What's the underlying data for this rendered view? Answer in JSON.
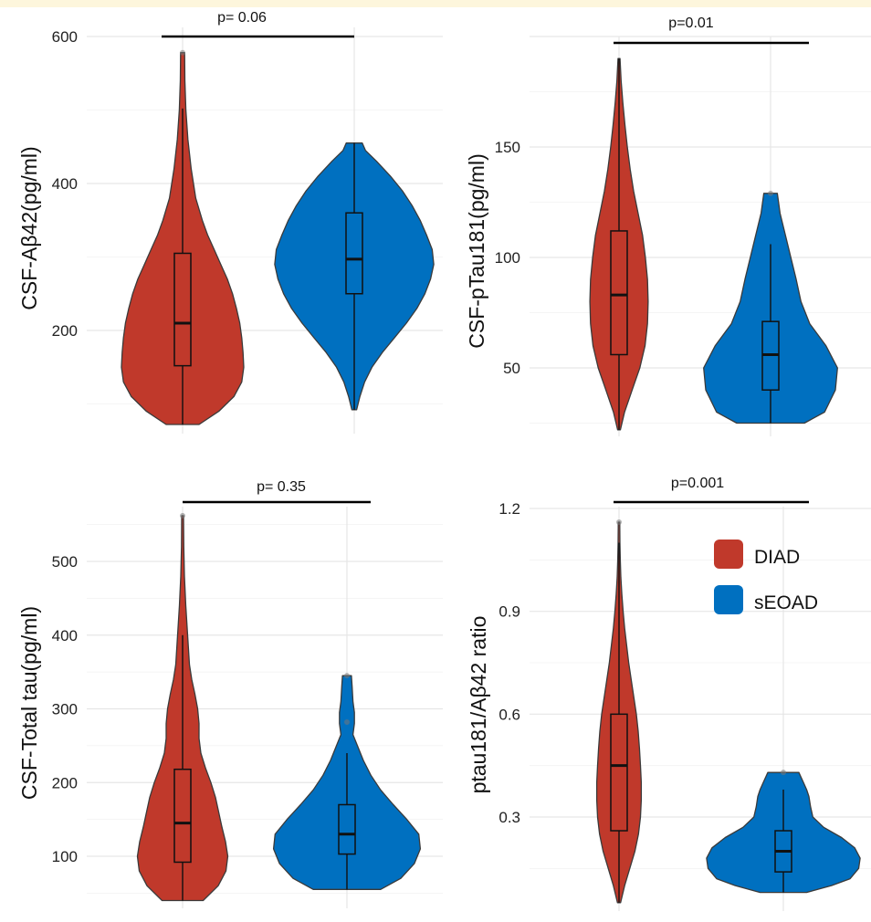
{
  "legend": [
    {
      "label": "DIAD",
      "color": "#c0392b"
    },
    {
      "label": "sEOAD",
      "color": "#0070c0"
    }
  ],
  "chart_data": [
    {
      "type": "violin",
      "ylabel": "CSF-Aβ42(pg/ml)",
      "ylim": [
        60,
        600
      ],
      "yticks": [
        200,
        400,
        600
      ],
      "pvalue": "p= 0.06",
      "series": [
        {
          "name": "DIAD",
          "color": "#c0392b",
          "min": 72,
          "max": 578,
          "q1": 152,
          "median": 210,
          "q3": 305,
          "whisker_low": 72,
          "whisker_high": 502,
          "outliers": [
            578
          ],
          "density": [
            [
              72,
              0.25
            ],
            [
              90,
              0.55
            ],
            [
              110,
              0.78
            ],
            [
              130,
              0.9
            ],
            [
              150,
              0.93
            ],
            [
              170,
              0.92
            ],
            [
              190,
              0.9
            ],
            [
              210,
              0.87
            ],
            [
              230,
              0.82
            ],
            [
              250,
              0.76
            ],
            [
              270,
              0.68
            ],
            [
              290,
              0.58
            ],
            [
              310,
              0.48
            ],
            [
              330,
              0.38
            ],
            [
              350,
              0.3
            ],
            [
              380,
              0.2
            ],
            [
              420,
              0.13
            ],
            [
              460,
              0.08
            ],
            [
              500,
              0.05
            ],
            [
              540,
              0.035
            ],
            [
              578,
              0.03
            ]
          ]
        },
        {
          "name": "sEOAD",
          "color": "#0070c0",
          "min": 92,
          "max": 455,
          "q1": 250,
          "median": 297,
          "q3": 360,
          "whisker_low": 92,
          "whisker_high": 455,
          "outliers": [],
          "density": [
            [
              92,
              0.03
            ],
            [
              110,
              0.07
            ],
            [
              130,
              0.13
            ],
            [
              150,
              0.22
            ],
            [
              170,
              0.35
            ],
            [
              190,
              0.5
            ],
            [
              210,
              0.65
            ],
            [
              230,
              0.78
            ],
            [
              250,
              0.88
            ],
            [
              270,
              0.95
            ],
            [
              290,
              0.99
            ],
            [
              310,
              0.97
            ],
            [
              330,
              0.9
            ],
            [
              350,
              0.82
            ],
            [
              370,
              0.72
            ],
            [
              390,
              0.6
            ],
            [
              410,
              0.45
            ],
            [
              430,
              0.28
            ],
            [
              445,
              0.14
            ],
            [
              455,
              0.1
            ]
          ]
        }
      ]
    },
    {
      "type": "violin",
      "ylabel": "CSF-pTau181(pg/ml)",
      "ylim": [
        25,
        195
      ],
      "yticks": [
        50,
        100,
        150
      ],
      "pvalue": "p=0.01",
      "series": [
        {
          "name": "DIAD",
          "color": "#c0392b",
          "min": 22,
          "max": 190,
          "q1": 56,
          "median": 83,
          "q3": 112,
          "whisker_low": 22,
          "whisker_high": 190,
          "outliers": [],
          "density": [
            [
              22,
              0.04
            ],
            [
              30,
              0.16
            ],
            [
              40,
              0.38
            ],
            [
              50,
              0.6
            ],
            [
              60,
              0.75
            ],
            [
              70,
              0.82
            ],
            [
              80,
              0.84
            ],
            [
              90,
              0.82
            ],
            [
              100,
              0.76
            ],
            [
              110,
              0.68
            ],
            [
              120,
              0.55
            ],
            [
              130,
              0.42
            ],
            [
              140,
              0.32
            ],
            [
              150,
              0.24
            ],
            [
              160,
              0.17
            ],
            [
              170,
              0.11
            ],
            [
              180,
              0.06
            ],
            [
              190,
              0.03
            ]
          ]
        },
        {
          "name": "sEOAD",
          "color": "#0070c0",
          "min": 25,
          "max": 129,
          "q1": 40,
          "median": 56,
          "q3": 71,
          "whisker_low": 25,
          "whisker_high": 106,
          "outliers": [
            129
          ],
          "density": [
            [
              25,
              0.5
            ],
            [
              30,
              0.8
            ],
            [
              40,
              0.96
            ],
            [
              50,
              0.99
            ],
            [
              60,
              0.82
            ],
            [
              70,
              0.58
            ],
            [
              80,
              0.45
            ],
            [
              90,
              0.38
            ],
            [
              100,
              0.3
            ],
            [
              110,
              0.22
            ],
            [
              120,
              0.14
            ],
            [
              129,
              0.1
            ]
          ]
        }
      ]
    },
    {
      "type": "violin",
      "ylabel": "CSF-Total tau(pg/ml)",
      "ylim": [
        40,
        575
      ],
      "yticks": [
        100,
        200,
        300,
        400,
        500
      ],
      "pvalue": "p= 0.35",
      "series": [
        {
          "name": "DIAD",
          "color": "#c0392b",
          "min": 40,
          "max": 562,
          "q1": 92,
          "median": 145,
          "q3": 218,
          "whisker_low": 40,
          "whisker_high": 400,
          "outliers": [
            562
          ],
          "density": [
            [
              40,
              0.45
            ],
            [
              60,
              0.78
            ],
            [
              80,
              0.95
            ],
            [
              100,
              0.99
            ],
            [
              120,
              0.94
            ],
            [
              140,
              0.86
            ],
            [
              160,
              0.79
            ],
            [
              180,
              0.72
            ],
            [
              200,
              0.62
            ],
            [
              220,
              0.5
            ],
            [
              240,
              0.4
            ],
            [
              260,
              0.36
            ],
            [
              280,
              0.36
            ],
            [
              300,
              0.33
            ],
            [
              320,
              0.27
            ],
            [
              340,
              0.2
            ],
            [
              360,
              0.15
            ],
            [
              400,
              0.11
            ],
            [
              440,
              0.07
            ],
            [
              480,
              0.04
            ],
            [
              520,
              0.025
            ],
            [
              562,
              0.02
            ]
          ]
        },
        {
          "name": "sEOAD",
          "color": "#0070c0",
          "min": 55,
          "max": 345,
          "q1": 103,
          "median": 130,
          "q3": 170,
          "whisker_low": 55,
          "whisker_high": 240,
          "outliers": [
            282,
            345
          ],
          "density": [
            [
              55,
              0.45
            ],
            [
              70,
              0.72
            ],
            [
              90,
              0.9
            ],
            [
              110,
              0.98
            ],
            [
              130,
              0.96
            ],
            [
              150,
              0.8
            ],
            [
              170,
              0.62
            ],
            [
              190,
              0.45
            ],
            [
              210,
              0.32
            ],
            [
              230,
              0.22
            ],
            [
              250,
              0.14
            ],
            [
              265,
              0.08
            ],
            [
              280,
              0.1
            ],
            [
              295,
              0.1
            ],
            [
              310,
              0.08
            ],
            [
              330,
              0.07
            ],
            [
              345,
              0.06
            ]
          ]
        }
      ]
    },
    {
      "type": "violin",
      "ylabel": "ptau181/Aβ42 ratio",
      "ylim": [
        0.05,
        1.2
      ],
      "yticks": [
        0.3,
        0.6,
        0.9,
        1.2
      ],
      "yticklabels": [
        "0.3",
        "0.6",
        "0.9",
        "1.2"
      ],
      "pvalue": "p=0.001",
      "series": [
        {
          "name": "DIAD",
          "color": "#c0392b",
          "min": 0.05,
          "max": 1.16,
          "q1": 0.26,
          "median": 0.45,
          "q3": 0.6,
          "whisker_low": 0.05,
          "whisker_high": 1.1,
          "outliers": [
            1.16
          ],
          "density": [
            [
              0.05,
              0.06
            ],
            [
              0.1,
              0.22
            ],
            [
              0.15,
              0.42
            ],
            [
              0.2,
              0.62
            ],
            [
              0.25,
              0.76
            ],
            [
              0.3,
              0.84
            ],
            [
              0.35,
              0.87
            ],
            [
              0.4,
              0.87
            ],
            [
              0.45,
              0.84
            ],
            [
              0.5,
              0.8
            ],
            [
              0.55,
              0.75
            ],
            [
              0.6,
              0.68
            ],
            [
              0.65,
              0.58
            ],
            [
              0.7,
              0.48
            ],
            [
              0.75,
              0.38
            ],
            [
              0.8,
              0.3
            ],
            [
              0.85,
              0.22
            ],
            [
              0.9,
              0.16
            ],
            [
              0.95,
              0.11
            ],
            [
              1.0,
              0.07
            ],
            [
              1.05,
              0.05
            ],
            [
              1.1,
              0.035
            ],
            [
              1.16,
              0.03
            ]
          ]
        },
        {
          "name": "sEOAD",
          "color": "#0070c0",
          "min": 0.08,
          "max": 0.43,
          "q1": 0.14,
          "median": 0.2,
          "q3": 0.26,
          "whisker_low": 0.08,
          "whisker_high": 0.38,
          "outliers": [
            0.43
          ],
          "density": [
            [
              0.08,
              0.3
            ],
            [
              0.1,
              0.62
            ],
            [
              0.12,
              0.86
            ],
            [
              0.15,
              0.97
            ],
            [
              0.18,
              0.99
            ],
            [
              0.21,
              0.92
            ],
            [
              0.24,
              0.75
            ],
            [
              0.27,
              0.52
            ],
            [
              0.3,
              0.38
            ],
            [
              0.33,
              0.35
            ],
            [
              0.36,
              0.33
            ],
            [
              0.38,
              0.3
            ],
            [
              0.4,
              0.26
            ],
            [
              0.43,
              0.2
            ]
          ]
        }
      ]
    }
  ]
}
